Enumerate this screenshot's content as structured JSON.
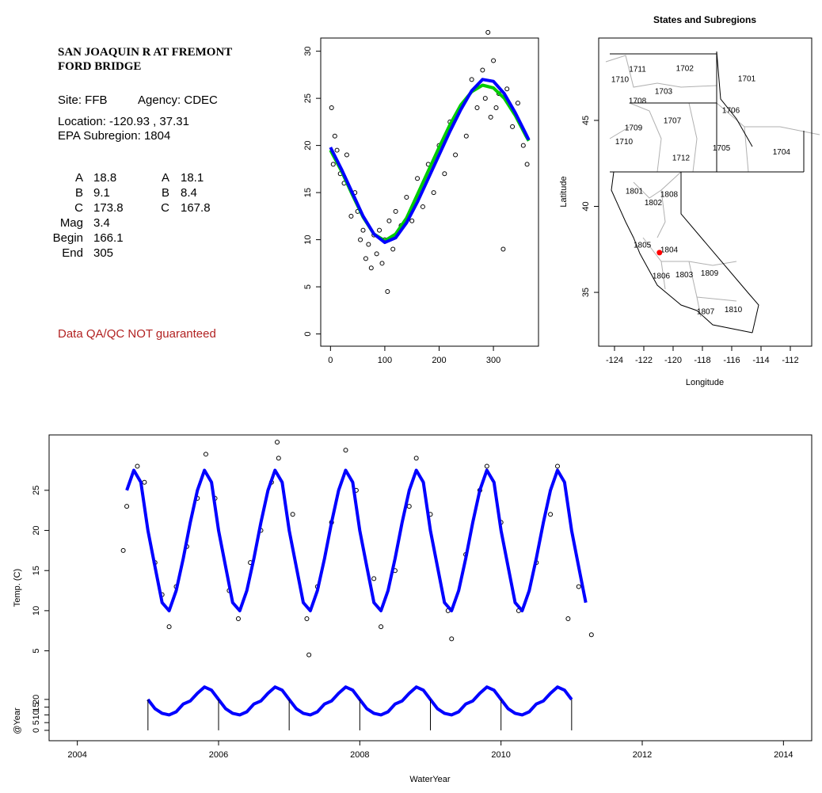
{
  "info": {
    "title": "SAN JOAQUIN R AT FREMONT FORD BRIDGE",
    "site": "Site: FFB",
    "agency": "Agency: CDEC",
    "location": "Location: -120.93 , 37.31",
    "subregion": "EPA Subregion: 1804",
    "params": [
      [
        "A",
        18.8,
        "A",
        18.1
      ],
      [
        "B",
        9.1,
        "B",
        8.4
      ],
      [
        "C",
        173.8,
        "C",
        167.8
      ],
      [
        "Mag",
        3.4
      ],
      [
        "Begin",
        166.1
      ],
      [
        "End",
        305
      ]
    ],
    "note": "Data QA/QC NOT guaranteed"
  },
  "chart_data": [
    {
      "type": "scatter",
      "x": [
        2,
        5,
        8,
        12,
        18,
        25,
        30,
        38,
        45,
        50,
        55,
        60,
        65,
        70,
        75,
        80,
        85,
        90,
        95,
        100,
        105,
        108,
        115,
        120,
        130,
        140,
        150,
        160,
        170,
        180,
        190,
        200,
        210,
        220,
        230,
        240,
        250,
        260,
        270,
        280,
        285,
        290,
        295,
        300,
        305,
        310,
        318,
        325,
        335,
        345,
        355,
        362
      ],
      "y": [
        24,
        18,
        21,
        19.5,
        17,
        16,
        19,
        12.5,
        15,
        13,
        10,
        11,
        8,
        9.5,
        7,
        10.5,
        8.5,
        11,
        7.5,
        10,
        4.5,
        12,
        9,
        13,
        11.5,
        14.5,
        12,
        16.5,
        13.5,
        18,
        15,
        20,
        17,
        22.5,
        19,
        24,
        21,
        27,
        24,
        28,
        25,
        32,
        23,
        29,
        24,
        25.5,
        9,
        26,
        22,
        24.5,
        20,
        18
      ],
      "point_color": "#000000",
      "lines": [
        {
          "color": "#00cc00",
          "width": 4,
          "x": [
            0,
            20,
            40,
            60,
            80,
            100,
            120,
            140,
            160,
            180,
            200,
            220,
            240,
            260,
            280,
            300,
            320,
            340,
            360,
            365
          ],
          "values": [
            19.5,
            17.3,
            14.8,
            12.4,
            10.6,
            9.9,
            10.6,
            12.3,
            14.8,
            17.3,
            19.8,
            22.2,
            24.3,
            25.7,
            26.4,
            26.1,
            25,
            23.2,
            21,
            20.5
          ]
        },
        {
          "color": "#0000ff",
          "width": 4,
          "x": [
            0,
            20,
            40,
            60,
            80,
            100,
            120,
            140,
            160,
            180,
            200,
            220,
            240,
            260,
            280,
            300,
            320,
            340,
            360,
            365
          ],
          "values": [
            19.8,
            17.5,
            15,
            12.5,
            10.6,
            9.7,
            10.2,
            11.8,
            14,
            16.5,
            19,
            21.5,
            23.8,
            25.8,
            27,
            26.8,
            25.5,
            23.5,
            21.2,
            20.6
          ]
        }
      ],
      "xlim": [
        -18,
        383
      ],
      "ylim": [
        -1.3,
        31.4
      ],
      "xticks": [
        0,
        100,
        200,
        300
      ],
      "yticks": [
        0,
        5,
        10,
        15,
        20,
        25,
        30
      ]
    },
    {
      "type": "map",
      "title": "States and Subregions",
      "xlabel": "Longitude",
      "ylabel": "Latitude",
      "xlim": [
        -125.08,
        -110.54
      ],
      "ylim": [
        31.87,
        49.79
      ],
      "xticks": [
        -124,
        -122,
        -120,
        -118,
        -116,
        -114,
        -112
      ],
      "yticks": [
        35,
        40,
        45
      ],
      "regions": [
        {
          "label": "1711",
          "lon": -122.43,
          "lat": 47.95
        },
        {
          "label": "1710",
          "lon": -123.62,
          "lat": 47.35
        },
        {
          "label": "1702",
          "lon": -119.2,
          "lat": 48.0
        },
        {
          "label": "1701",
          "lon": -114.97,
          "lat": 47.39
        },
        {
          "label": "1703",
          "lon": -120.65,
          "lat": 46.66
        },
        {
          "label": "1708",
          "lon": -122.43,
          "lat": 46.1
        },
        {
          "label": "1706",
          "lon": -116.05,
          "lat": 45.55
        },
        {
          "label": "1707",
          "lon": -120.05,
          "lat": 44.95
        },
        {
          "label": "1709",
          "lon": -122.7,
          "lat": 44.54
        },
        {
          "label": "1710",
          "lon": -123.35,
          "lat": 43.75
        },
        {
          "label": "1705",
          "lon": -116.7,
          "lat": 43.38
        },
        {
          "label": "1704",
          "lon": -112.6,
          "lat": 43.15
        },
        {
          "label": "1712",
          "lon": -119.46,
          "lat": 42.79
        },
        {
          "label": "1801",
          "lon": -122.65,
          "lat": 40.85
        },
        {
          "label": "1808",
          "lon": -120.27,
          "lat": 40.67
        },
        {
          "label": "1802",
          "lon": -121.35,
          "lat": 40.2
        },
        {
          "label": "1805",
          "lon": -122.1,
          "lat": 37.72
        },
        {
          "label": "1804",
          "lon": -120.27,
          "lat": 37.44
        },
        {
          "label": "1806",
          "lon": -120.81,
          "lat": 35.92
        },
        {
          "label": "1803",
          "lon": -119.24,
          "lat": 36.01
        },
        {
          "label": "1809",
          "lon": -117.51,
          "lat": 36.1
        },
        {
          "label": "1807",
          "lon": -117.78,
          "lat": 33.85
        },
        {
          "label": "1810",
          "lon": -115.89,
          "lat": 33.98
        }
      ],
      "site": {
        "lon": -120.93,
        "lat": 37.31,
        "color": "#ff0000"
      }
    },
    {
      "type": "timeseries",
      "xlabel": "WaterYear",
      "ylabel": "Temp. (C)",
      "y2label": "@Year",
      "xlim": [
        2003.6,
        2014.4
      ],
      "xticks": [
        2004,
        2006,
        2008,
        2010,
        2012,
        2014
      ],
      "ylim": [
        -6.2,
        31.9
      ],
      "yticks": [
        5,
        10,
        15,
        20,
        25
      ],
      "y2lim": [
        -6.7,
        191
      ],
      "y2ticks": [
        0,
        5,
        10,
        15,
        20
      ],
      "points": {
        "color": "#000000",
        "x": [
          2004.65,
          2004.7,
          2004.85,
          2004.95,
          2005.1,
          2005.2,
          2005.3,
          2005.4,
          2005.55,
          2005.7,
          2005.82,
          2005.95,
          2006.15,
          2006.28,
          2006.45,
          2006.6,
          2006.75,
          2006.83,
          2006.85,
          2007.05,
          2007.25,
          2007.28,
          2007.4,
          2007.6,
          2007.8,
          2007.95,
          2008.2,
          2008.3,
          2008.5,
          2008.7,
          2008.8,
          2009.0,
          2009.25,
          2009.3,
          2009.5,
          2009.7,
          2009.8,
          2010.0,
          2010.25,
          2010.5,
          2010.7,
          2010.8,
          2010.95,
          2011.1,
          2011.28
        ],
        "y": [
          17.5,
          23,
          28,
          26,
          16,
          12,
          8,
          13,
          18,
          24,
          29.5,
          24,
          12.5,
          9,
          16,
          20,
          26,
          31,
          29,
          22,
          9,
          4.5,
          13,
          21,
          30,
          25,
          14,
          8,
          15,
          23,
          29,
          22,
          10,
          6.5,
          17,
          25,
          28,
          21,
          10,
          16,
          22,
          28,
          9,
          13,
          7
        ]
      },
      "series": [
        {
          "color": "#0000ff",
          "x": [
            2004.7,
            2004.8,
            2004.9,
            2005,
            2005.1,
            2005.2,
            2005.3,
            2005.4,
            2005.5,
            2005.6,
            2005.7,
            2005.8,
            2005.9,
            2006,
            2006.1,
            2006.2,
            2006.3,
            2006.4,
            2006.5,
            2006.6,
            2006.7,
            2006.8,
            2006.9,
            2007,
            2007.1,
            2007.2,
            2007.3,
            2007.4,
            2007.5,
            2007.6,
            2007.7,
            2007.8,
            2007.9,
            2008,
            2008.1,
            2008.2,
            2008.3,
            2008.4,
            2008.5,
            2008.6,
            2008.7,
            2008.8,
            2008.9,
            2009,
            2009.1,
            2009.2,
            2009.3,
            2009.4,
            2009.5,
            2009.6,
            2009.7,
            2009.8,
            2009.9,
            2010,
            2010.1,
            2010.2,
            2010.3,
            2010.4,
            2010.5,
            2010.6,
            2010.7,
            2010.8,
            2010.9,
            2011,
            2011.1,
            2011.2
          ],
          "values": [
            25,
            27.5,
            26,
            20,
            15.5,
            11,
            10,
            12.5,
            16.5,
            21,
            25,
            27.5,
            26,
            20,
            15.5,
            11,
            10,
            12.5,
            16.5,
            21,
            25,
            27.5,
            26,
            20,
            15.5,
            11,
            10,
            12.5,
            16.5,
            21,
            25,
            27.5,
            26,
            20,
            15.5,
            11,
            10,
            12.5,
            16.5,
            21,
            25,
            27.5,
            26,
            20,
            15.5,
            11,
            10,
            12.5,
            16.5,
            21,
            25,
            27.5,
            26,
            20,
            15.5,
            11,
            10,
            12.5,
            16.5,
            21,
            25,
            27.5,
            26,
            20,
            15.5,
            11
          ]
        },
        {
          "color": "#0000ff",
          "axis": "y2",
          "x": [
            2005,
            2005.1,
            2005.2,
            2005.3,
            2005.4,
            2005.5,
            2005.6,
            2005.7,
            2005.8,
            2005.9,
            2006,
            2006.1,
            2006.2,
            2006.3,
            2006.4,
            2006.5,
            2006.6,
            2006.7,
            2006.8,
            2006.9,
            2007,
            2007.1,
            2007.2,
            2007.3,
            2007.4,
            2007.5,
            2007.6,
            2007.7,
            2007.8,
            2007.9,
            2008,
            2008.1,
            2008.2,
            2008.3,
            2008.4,
            2008.5,
            2008.6,
            2008.7,
            2008.8,
            2008.9,
            2009,
            2009.1,
            2009.2,
            2009.3,
            2009.4,
            2009.5,
            2009.6,
            2009.7,
            2009.8,
            2009.9,
            2010,
            2010.1,
            2010.2,
            2010.3,
            2010.4,
            2010.5,
            2010.6,
            2010.7,
            2010.8,
            2010.9,
            2011
          ],
          "values": [
            20,
            14,
            11,
            10,
            12,
            17,
            19,
            24,
            28,
            26,
            20,
            14,
            11,
            10,
            12,
            17,
            19,
            24,
            28,
            26,
            20,
            14,
            11,
            10,
            12,
            17,
            19,
            24,
            28,
            26,
            20,
            14,
            11,
            10,
            12,
            17,
            19,
            24,
            28,
            26,
            20,
            14,
            11,
            10,
            12,
            17,
            19,
            24,
            28,
            26,
            20,
            14,
            11,
            10,
            12,
            17,
            19,
            24,
            28,
            26,
            20
          ]
        }
      ],
      "year_lines": [
        2005,
        2006,
        2007,
        2008,
        2009,
        2010,
        2011
      ]
    }
  ]
}
